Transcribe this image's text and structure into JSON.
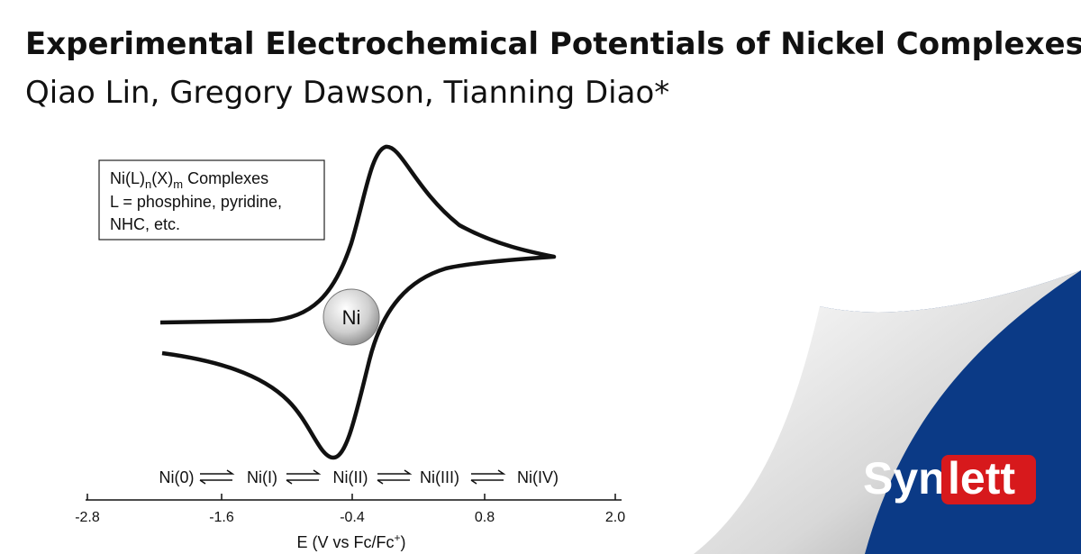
{
  "header": {
    "title": "Experimental Electrochemical Potentials of Nickel Complexes",
    "authors": "Qiao Lin, Gregory Dawson, Tianning Diao*"
  },
  "legend_box": {
    "line1": [
      "Ni(L)",
      "n",
      "(X)",
      "m",
      " Complexes"
    ],
    "line2": "L = phosphine, pyridine,",
    "line3": "NHC, etc."
  },
  "center_label": "Ni",
  "species": [
    "Ni(0)",
    "Ni(I)",
    "Ni(II)",
    "Ni(III)",
    "Ni(IV)"
  ],
  "axis": {
    "ticks": [
      "-2.8",
      "-1.6",
      "-0.4",
      "0.8",
      "2.0"
    ],
    "label": [
      "E (V vs Fc/Fc",
      "+",
      ")"
    ]
  },
  "journal": {
    "part1": "Syn",
    "part2": "lett"
  }
}
